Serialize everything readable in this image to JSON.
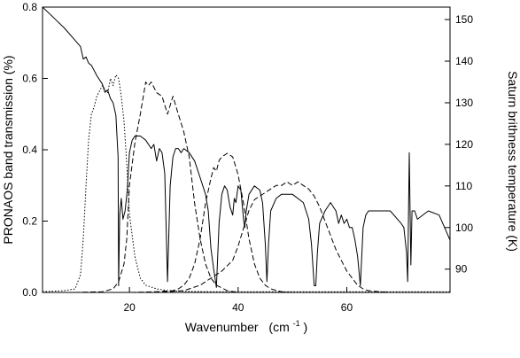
{
  "chart_data": {
    "type": "line",
    "xlabel": "Wavenumber",
    "xlabel_unit": "(cm",
    "xlabel_unit_exp": "-1",
    "xlabel_unit_close": ")",
    "ylabel": "PRONAOS band transmission (%)",
    "y2label": "Saturn brithness temperature (K)",
    "xlim": [
      4,
      79
    ],
    "ylim": [
      0,
      0.8
    ],
    "y2lim": [
      84.4,
      153
    ],
    "x_ticks": [
      20,
      40,
      60
    ],
    "y_ticks": [
      0.0,
      0.2,
      0.4,
      0.6,
      0.8
    ],
    "y_tick_labels": [
      "0.0",
      "0.2",
      "0.4",
      "0.6",
      "0.8"
    ],
    "y2_ticks": [
      90,
      100,
      110,
      120,
      130,
      140,
      150
    ],
    "grid": false,
    "legend": "none",
    "series": [
      {
        "axis": "y2",
        "style": "solid",
        "x": [
          4,
          6,
          8,
          10,
          11,
          11.5,
          12,
          12.5,
          13,
          14,
          15,
          15.5,
          16,
          16.5,
          17,
          17.5,
          17.9,
          18,
          18.2,
          18.5,
          18.8,
          19.2,
          19.6,
          20,
          20.5,
          21,
          22,
          23,
          24,
          24.5,
          25,
          25.5,
          26,
          26.5,
          27,
          27.5,
          28,
          28.5,
          29,
          29.5,
          30,
          31,
          32,
          33,
          34,
          34.5,
          35,
          35.5,
          36,
          36.5,
          37,
          37.5,
          38,
          38.5,
          39,
          39.3,
          39.6,
          40,
          40.5,
          41,
          41.2,
          41.5,
          42,
          43,
          44,
          44.5,
          45,
          45.3,
          45.6,
          46,
          47,
          48,
          50,
          52,
          53,
          53.5,
          54,
          54.3,
          54.6,
          55,
          56,
          57,
          58,
          58.5,
          59,
          59.5,
          60,
          60.5,
          61,
          61.5,
          62,
          62.5,
          63,
          63.5,
          64,
          66,
          68,
          70,
          70.5,
          71,
          71.2,
          71.5,
          71.8,
          72,
          72.5,
          73,
          75,
          77,
          78,
          79
        ],
        "y": [
          153,
          150.5,
          148,
          145,
          143.5,
          140.5,
          141,
          139.5,
          139,
          136.5,
          134.5,
          132.5,
          133,
          131,
          130,
          127,
          117,
          86,
          103,
          107,
          102,
          104,
          109,
          118,
          121,
          122,
          122,
          121,
          119,
          120,
          116,
          119,
          118,
          113,
          87,
          110,
          117,
          119,
          119,
          118,
          119,
          118,
          116,
          112,
          108,
          104,
          95,
          90,
          85.6,
          101,
          108,
          110,
          109,
          105,
          103,
          107,
          106,
          110,
          109,
          102,
          100,
          104,
          108,
          110,
          109,
          106,
          96,
          87,
          96,
          104,
          107,
          108,
          108,
          106,
          102,
          96,
          86,
          86,
          94,
          101,
          104,
          106,
          104,
          101,
          103,
          101,
          102,
          100,
          100,
          97,
          93,
          86,
          100,
          103,
          104,
          104,
          104,
          101,
          100,
          94,
          87,
          118,
          91,
          104,
          104,
          102,
          104,
          103,
          100,
          97
        ]
      },
      {
        "axis": "y",
        "style": "dotted",
        "x": [
          4,
          8,
          10,
          11,
          11.5,
          12,
          12.5,
          13,
          13.5,
          14,
          15,
          16,
          16.5,
          17,
          17.5,
          18,
          18.5,
          19,
          19.5,
          20,
          21,
          22,
          23,
          25,
          27,
          30,
          35,
          40,
          50,
          79
        ],
        "y": [
          0.002,
          0.005,
          0.01,
          0.05,
          0.15,
          0.3,
          0.43,
          0.5,
          0.52,
          0.55,
          0.58,
          0.56,
          0.6,
          0.58,
          0.61,
          0.6,
          0.55,
          0.48,
          0.36,
          0.22,
          0.1,
          0.04,
          0.02,
          0.01,
          0.005,
          0.003,
          0.002,
          0.002,
          0.002,
          0.002
        ]
      },
      {
        "axis": "y",
        "style": "dashed",
        "x": [
          4,
          10,
          15,
          17,
          18,
          19,
          19.5,
          20,
          21,
          22,
          23,
          23.5,
          24,
          25,
          26,
          27,
          28,
          29,
          30,
          31,
          32,
          33,
          34,
          35,
          36,
          38,
          40
        ],
        "y": [
          0,
          0,
          0.002,
          0.01,
          0.03,
          0.08,
          0.15,
          0.3,
          0.42,
          0.5,
          0.59,
          0.58,
          0.59,
          0.56,
          0.55,
          0.5,
          0.55,
          0.5,
          0.45,
          0.38,
          0.25,
          0.15,
          0.08,
          0.04,
          0.02,
          0.005,
          0
        ]
      },
      {
        "axis": "y",
        "style": "dashed",
        "x": [
          4,
          20,
          25,
          28,
          29,
          30,
          31,
          32,
          33,
          34,
          35,
          35.5,
          36,
          36.5,
          37,
          38,
          39,
          40,
          41,
          42,
          43,
          44,
          45,
          46,
          48,
          50
        ],
        "y": [
          0,
          0,
          0.002,
          0.005,
          0.01,
          0.02,
          0.04,
          0.08,
          0.15,
          0.25,
          0.32,
          0.35,
          0.34,
          0.37,
          0.38,
          0.39,
          0.38,
          0.33,
          0.25,
          0.15,
          0.08,
          0.04,
          0.02,
          0.01,
          0.002,
          0
        ]
      },
      {
        "axis": "y",
        "style": "dashed",
        "x": [
          4,
          25,
          30,
          33,
          35,
          37,
          39,
          40,
          41,
          42,
          43,
          44,
          45,
          46,
          47,
          48,
          49,
          50,
          51,
          52,
          53,
          54,
          55,
          56,
          57,
          58,
          59,
          60,
          61,
          62,
          63,
          64,
          66,
          68,
          79
        ],
        "y": [
          0,
          0,
          0.005,
          0.02,
          0.04,
          0.06,
          0.09,
          0.13,
          0.18,
          0.23,
          0.26,
          0.27,
          0.28,
          0.29,
          0.3,
          0.3,
          0.31,
          0.3,
          0.31,
          0.3,
          0.29,
          0.27,
          0.24,
          0.2,
          0.16,
          0.12,
          0.09,
          0.06,
          0.04,
          0.02,
          0.01,
          0.005,
          0.002,
          0,
          0
        ]
      }
    ]
  }
}
